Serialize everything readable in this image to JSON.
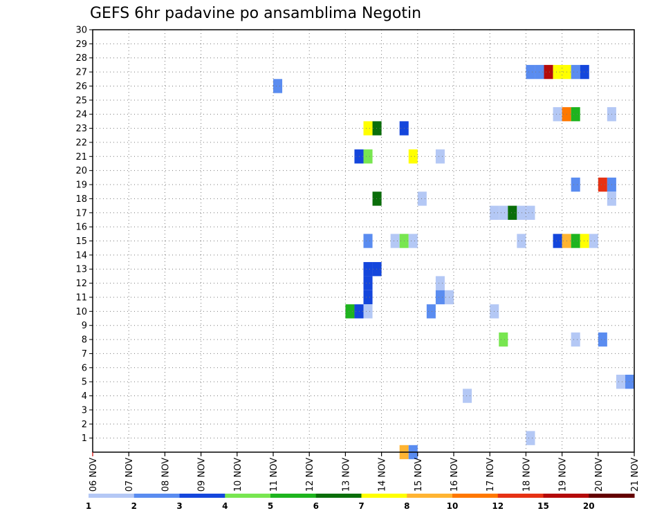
{
  "chart_data": {
    "type": "heatmap",
    "title": "GEFS 6hr padavine po ansamblima Negotin",
    "xlabel": "",
    "ylabel": "",
    "x_ticks": [
      "06 NOV",
      "07 NOV",
      "08 NOV",
      "09 NOV",
      "10 NOV",
      "11 NOV",
      "12 NOV",
      "13 NOV",
      "14 NOV",
      "15 NOV",
      "16 NOV",
      "17 NOV",
      "18 NOV",
      "19 NOV",
      "20 NOV",
      "21 NOV"
    ],
    "xlim_days": [
      6,
      21
    ],
    "ylim": [
      0,
      30
    ],
    "y_ticks": [
      1,
      2,
      3,
      4,
      5,
      6,
      7,
      8,
      9,
      10,
      11,
      12,
      13,
      14,
      15,
      16,
      17,
      18,
      19,
      20,
      21,
      22,
      23,
      24,
      25,
      26,
      27,
      28,
      29,
      30
    ],
    "grid": true,
    "colorbar": {
      "position": "bottom",
      "labels": [
        "1",
        "2",
        "3",
        "4",
        "5",
        "6",
        "7",
        "8",
        "10",
        "12",
        "15",
        "20"
      ],
      "colors": [
        "#b4c8f5",
        "#5a8cf0",
        "#1446dc",
        "#78e650",
        "#1eb41e",
        "#0a6e0a",
        "#ffff00",
        "#ffb432",
        "#ff7800",
        "#e63214",
        "#b40a0a",
        "#640000"
      ]
    },
    "cells": [
      {
        "member": 27,
        "day": 18.0,
        "c": 1
      },
      {
        "member": 27,
        "day": 18.25,
        "c": 1
      },
      {
        "member": 27,
        "day": 18.5,
        "c": 10
      },
      {
        "member": 27,
        "day": 18.75,
        "c": 6
      },
      {
        "member": 27,
        "day": 19.0,
        "c": 6
      },
      {
        "member": 27,
        "day": 19.25,
        "c": 1
      },
      {
        "member": 27,
        "day": 19.5,
        "c": 2
      },
      {
        "member": 26,
        "day": 11.0,
        "c": 1
      },
      {
        "member": 24,
        "day": 18.75,
        "c": 0
      },
      {
        "member": 24,
        "day": 19.0,
        "c": 8
      },
      {
        "member": 24,
        "day": 19.25,
        "c": 4
      },
      {
        "member": 24,
        "day": 20.25,
        "c": 0
      },
      {
        "member": 23,
        "day": 13.5,
        "c": 6
      },
      {
        "member": 23,
        "day": 13.75,
        "c": 5
      },
      {
        "member": 23,
        "day": 14.5,
        "c": 2
      },
      {
        "member": 21,
        "day": 13.25,
        "c": 2
      },
      {
        "member": 21,
        "day": 13.5,
        "c": 3
      },
      {
        "member": 21,
        "day": 14.75,
        "c": 6
      },
      {
        "member": 21,
        "day": 15.5,
        "c": 0
      },
      {
        "member": 19,
        "day": 19.25,
        "c": 1
      },
      {
        "member": 19,
        "day": 20.0,
        "c": 9
      },
      {
        "member": 19,
        "day": 20.25,
        "c": 1
      },
      {
        "member": 18,
        "day": 13.75,
        "c": 5
      },
      {
        "member": 18,
        "day": 15.0,
        "c": 0
      },
      {
        "member": 18,
        "day": 20.25,
        "c": 0
      },
      {
        "member": 17,
        "day": 17.0,
        "c": 0
      },
      {
        "member": 17,
        "day": 17.25,
        "c": 0
      },
      {
        "member": 17,
        "day": 17.5,
        "c": 5
      },
      {
        "member": 17,
        "day": 17.75,
        "c": 0
      },
      {
        "member": 17,
        "day": 18.0,
        "c": 0
      },
      {
        "member": 15,
        "day": 13.5,
        "c": 1
      },
      {
        "member": 15,
        "day": 14.25,
        "c": 0
      },
      {
        "member": 15,
        "day": 14.5,
        "c": 3
      },
      {
        "member": 15,
        "day": 14.75,
        "c": 0
      },
      {
        "member": 15,
        "day": 17.75,
        "c": 0
      },
      {
        "member": 15,
        "day": 18.75,
        "c": 2
      },
      {
        "member": 15,
        "day": 19.0,
        "c": 7
      },
      {
        "member": 15,
        "day": 19.25,
        "c": 4
      },
      {
        "member": 15,
        "day": 19.5,
        "c": 6
      },
      {
        "member": 15,
        "day": 19.75,
        "c": 0
      },
      {
        "member": 13,
        "day": 13.5,
        "c": 2
      },
      {
        "member": 13,
        "day": 13.75,
        "c": 2
      },
      {
        "member": 12,
        "day": 13.5,
        "c": 2
      },
      {
        "member": 12,
        "day": 15.5,
        "c": 0
      },
      {
        "member": 11,
        "day": 13.5,
        "c": 2
      },
      {
        "member": 11,
        "day": 15.5,
        "c": 1
      },
      {
        "member": 11,
        "day": 15.75,
        "c": 0
      },
      {
        "member": 10,
        "day": 13.0,
        "c": 4
      },
      {
        "member": 10,
        "day": 13.25,
        "c": 2
      },
      {
        "member": 10,
        "day": 13.5,
        "c": 0
      },
      {
        "member": 10,
        "day": 15.25,
        "c": 1
      },
      {
        "member": 10,
        "day": 17.0,
        "c": 0
      },
      {
        "member": 8,
        "day": 17.25,
        "c": 3
      },
      {
        "member": 8,
        "day": 19.25,
        "c": 0
      },
      {
        "member": 8,
        "day": 20.0,
        "c": 1
      },
      {
        "member": 5,
        "day": 20.5,
        "c": 0
      },
      {
        "member": 5,
        "day": 20.75,
        "c": 1
      },
      {
        "member": 4,
        "day": 16.25,
        "c": 0
      },
      {
        "member": 1,
        "day": 18.0,
        "c": 0
      },
      {
        "member": 0,
        "day": 14.5,
        "c": 7
      },
      {
        "member": 0,
        "day": 14.75,
        "c": 1
      }
    ]
  }
}
